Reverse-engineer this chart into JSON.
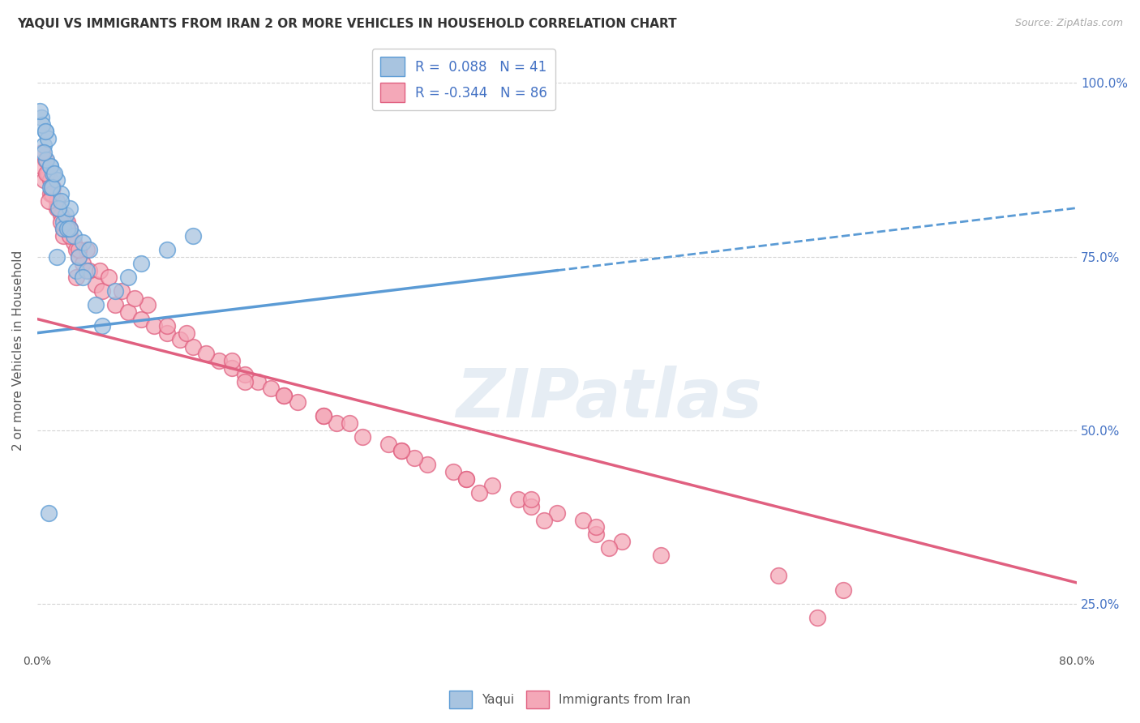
{
  "title": "YAQUI VS IMMIGRANTS FROM IRAN 2 OR MORE VEHICLES IN HOUSEHOLD CORRELATION CHART",
  "source_text": "Source: ZipAtlas.com",
  "ylabel": "2 or more Vehicles in Household",
  "watermark": "ZIPatlas",
  "yaqui_R": 0.088,
  "yaqui_N": 41,
  "iran_R": -0.344,
  "iran_N": 86,
  "x_min": 0.0,
  "x_max": 80.0,
  "y_min": 18.0,
  "y_max": 105.0,
  "y_ticks": [
    25.0,
    50.0,
    75.0,
    100.0
  ],
  "yaqui_color": "#a8c4e0",
  "iran_color": "#f4a8b8",
  "yaqui_line_color": "#5b9bd5",
  "iran_line_color": "#e06080",
  "legend_text_color": "#4472c4",
  "background_color": "#ffffff",
  "grid_color": "#d0d0d0",
  "yaqui_scatter_x": [
    0.3,
    0.5,
    0.6,
    0.8,
    1.0,
    1.0,
    1.2,
    1.5,
    1.5,
    1.8,
    2.0,
    2.0,
    2.2,
    2.5,
    2.8,
    3.0,
    3.2,
    3.5,
    4.0,
    4.5,
    5.0,
    6.0,
    7.0,
    8.0,
    10.0,
    12.0,
    0.4,
    0.7,
    1.1,
    1.6,
    2.3,
    3.8,
    0.9,
    1.8,
    2.5,
    3.5,
    1.0,
    0.5,
    0.2,
    0.6,
    1.3
  ],
  "yaqui_scatter_y": [
    95.0,
    91.0,
    93.0,
    92.0,
    88.0,
    85.0,
    87.0,
    86.0,
    75.0,
    84.0,
    80.0,
    79.0,
    81.0,
    82.0,
    78.0,
    73.0,
    75.0,
    77.0,
    76.0,
    68.0,
    65.0,
    70.0,
    72.0,
    74.0,
    76.0,
    78.0,
    94.0,
    89.0,
    85.0,
    82.0,
    79.0,
    73.0,
    38.0,
    83.0,
    79.0,
    72.0,
    88.0,
    90.0,
    96.0,
    93.0,
    87.0
  ],
  "iran_scatter_x": [
    0.3,
    0.5,
    0.6,
    0.8,
    1.0,
    1.0,
    1.2,
    1.5,
    1.5,
    1.8,
    2.0,
    2.0,
    2.2,
    2.5,
    2.8,
    3.0,
    3.2,
    3.5,
    4.0,
    4.5,
    5.0,
    6.0,
    7.0,
    8.0,
    9.0,
    10.0,
    11.0,
    12.0,
    14.0,
    15.0,
    16.0,
    17.0,
    18.0,
    19.0,
    20.0,
    22.0,
    23.0,
    25.0,
    27.0,
    28.0,
    30.0,
    32.0,
    33.0,
    35.0,
    37.0,
    38.0,
    40.0,
    42.0,
    43.0,
    45.0,
    0.4,
    0.7,
    1.1,
    1.6,
    2.3,
    3.8,
    0.9,
    4.8,
    6.5,
    8.5,
    11.5,
    15.0,
    19.0,
    24.0,
    29.0,
    34.0,
    39.0,
    44.0,
    1.8,
    2.5,
    3.2,
    5.5,
    7.5,
    10.0,
    13.0,
    16.0,
    22.0,
    28.0,
    33.0,
    38.0,
    43.0,
    48.0,
    57.0,
    62.0,
    3.0
  ],
  "iran_scatter_y": [
    88.0,
    86.0,
    89.0,
    87.0,
    84.0,
    86.0,
    85.0,
    83.0,
    82.0,
    81.0,
    79.0,
    78.0,
    80.0,
    79.0,
    77.0,
    76.0,
    75.0,
    74.0,
    73.0,
    71.0,
    70.0,
    68.0,
    67.0,
    66.0,
    65.0,
    64.0,
    63.0,
    62.0,
    60.0,
    59.0,
    58.0,
    57.0,
    56.0,
    55.0,
    54.0,
    52.0,
    51.0,
    49.0,
    48.0,
    47.0,
    45.0,
    44.0,
    43.0,
    42.0,
    40.0,
    39.0,
    38.0,
    37.0,
    35.0,
    34.0,
    90.0,
    87.0,
    84.0,
    82.0,
    80.0,
    76.0,
    83.0,
    73.0,
    70.0,
    68.0,
    64.0,
    60.0,
    55.0,
    51.0,
    46.0,
    41.0,
    37.0,
    33.0,
    80.0,
    78.0,
    76.0,
    72.0,
    69.0,
    65.0,
    61.0,
    57.0,
    52.0,
    47.0,
    43.0,
    40.0,
    36.0,
    32.0,
    29.0,
    27.0,
    72.0
  ],
  "iran_outlier_x": 60.0,
  "iran_outlier_y": 23.0,
  "yaqui_trendline_x0": 0.0,
  "yaqui_trendline_y0": 64.0,
  "yaqui_trendline_x1": 80.0,
  "yaqui_trendline_y1": 82.0,
  "yaqui_solid_x1": 40.0,
  "iran_trendline_x0": 0.0,
  "iran_trendline_y0": 66.0,
  "iran_trendline_x1": 80.0,
  "iran_trendline_y1": 28.0
}
